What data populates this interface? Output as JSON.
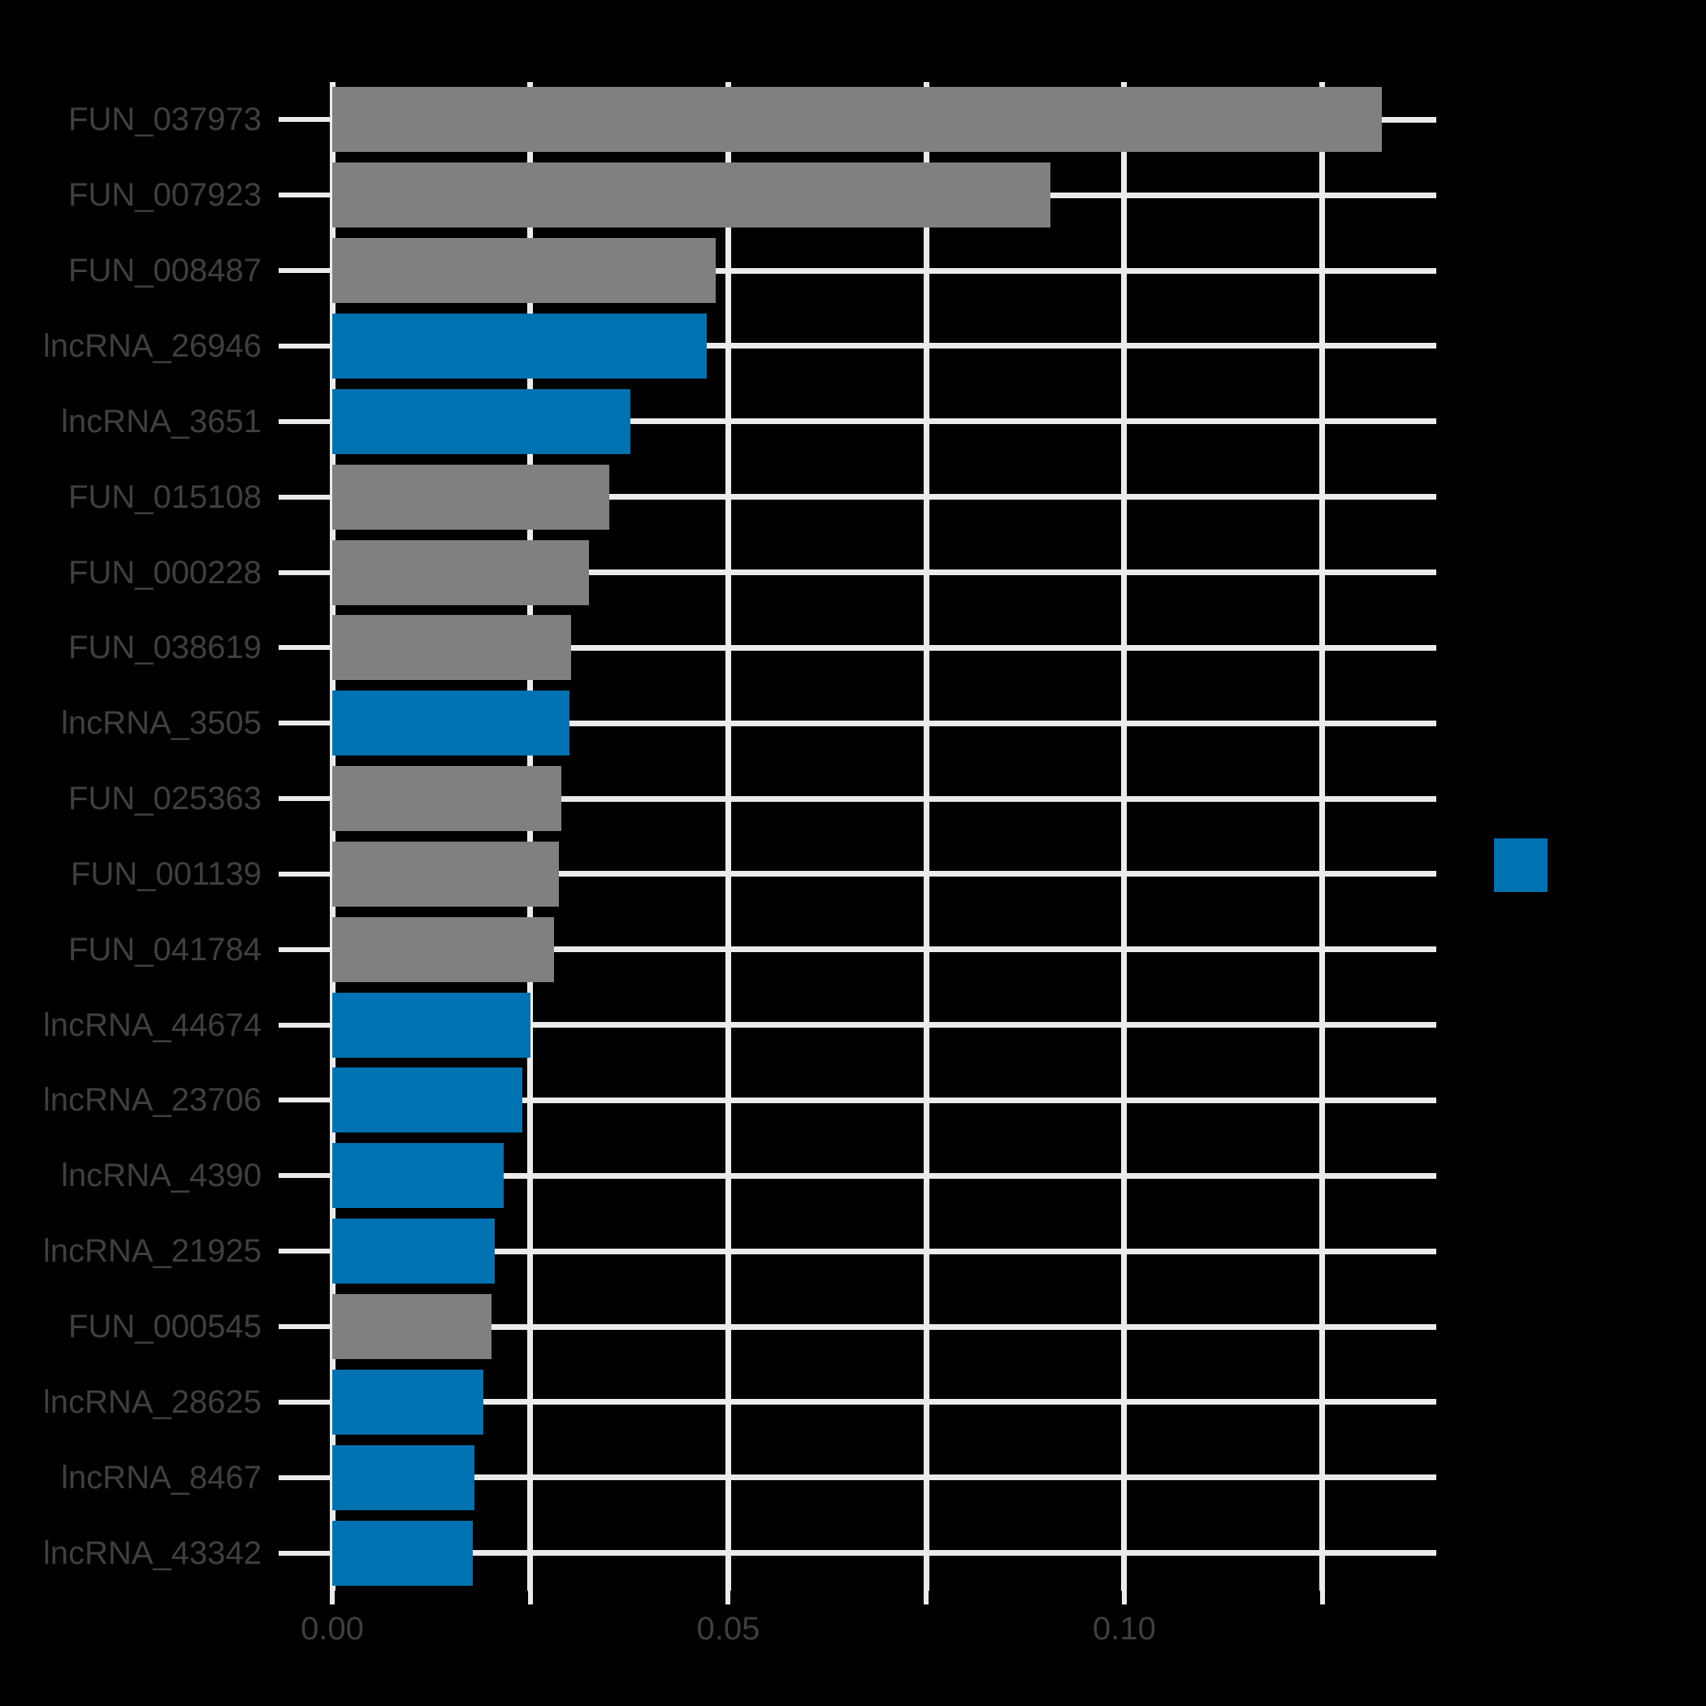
{
  "figure": {
    "background": "#000000",
    "text_color": "#3F3F3F",
    "grid_color": "#EBEBEB"
  },
  "chart_data": {
    "type": "bar",
    "orientation": "horizontal",
    "title": "",
    "xlabel": "",
    "ylabel": "",
    "grid": true,
    "legend_position": "right",
    "xlim": [
      0,
      0.1394
    ],
    "x_ticks": [
      {
        "value": 0.0,
        "label": "0.00"
      },
      {
        "value": 0.025,
        "label": ""
      },
      {
        "value": 0.05,
        "label": "0.05"
      },
      {
        "value": 0.075,
        "label": ""
      },
      {
        "value": 0.1,
        "label": "0.10"
      },
      {
        "value": 0.125,
        "label": ""
      }
    ],
    "group_colors": {
      "FUN": "#808080",
      "lncRNA": "#0072B2"
    },
    "categories": [
      "FUN_037973",
      "FUN_007923",
      "FUN_008487",
      "lncRNA_26946",
      "lncRNA_3651",
      "FUN_015108",
      "FUN_000228",
      "FUN_038619",
      "lncRNA_3505",
      "FUN_025363",
      "FUN_001139",
      "FUN_041784",
      "lncRNA_44674",
      "lncRNA_23706",
      "lncRNA_4390",
      "lncRNA_21925",
      "FUN_000545",
      "lncRNA_28625",
      "lncRNA_8467",
      "lncRNA_43342"
    ],
    "groups": [
      "FUN",
      "FUN",
      "FUN",
      "lncRNA",
      "lncRNA",
      "FUN",
      "FUN",
      "FUN",
      "lncRNA",
      "FUN",
      "FUN",
      "FUN",
      "lncRNA",
      "lncRNA",
      "lncRNA",
      "lncRNA",
      "FUN",
      "lncRNA",
      "lncRNA",
      "lncRNA"
    ],
    "values": [
      0.1325,
      0.0907,
      0.0484,
      0.0473,
      0.0376,
      0.035,
      0.0324,
      0.0302,
      0.03,
      0.0289,
      0.0286,
      0.028,
      0.025,
      0.024,
      0.0216,
      0.0205,
      0.0201,
      0.0191,
      0.018,
      0.0177
    ]
  },
  "legend": {
    "swatch_color": "#0072B2"
  }
}
